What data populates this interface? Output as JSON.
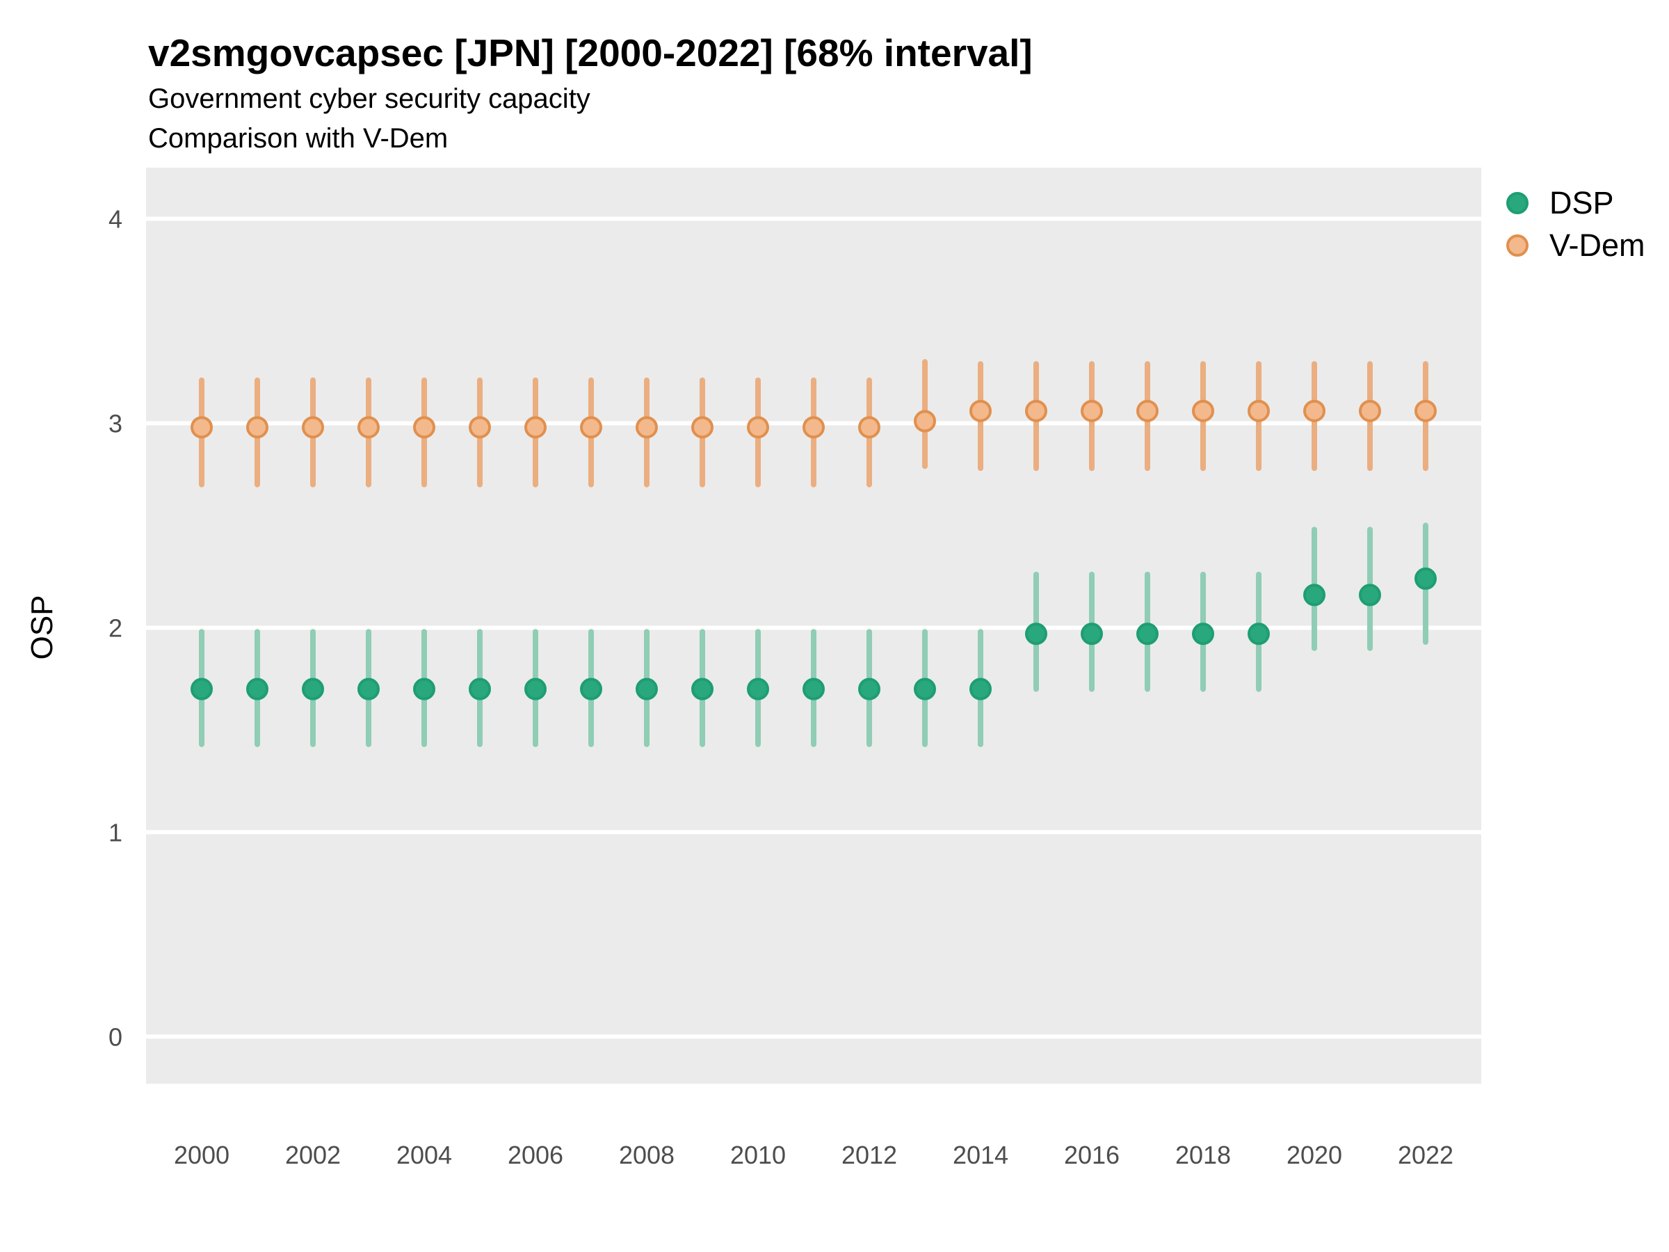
{
  "header": {
    "title": "v2smgovcapsec [JPN] [2000-2022] [68% interval]",
    "subtitle1": "Government cyber security capacity",
    "subtitle2": "Comparison with V-Dem"
  },
  "axes": {
    "y_label": "OSP"
  },
  "panel": {
    "background_color": "#EBEBEB",
    "gridline_color": "#FFFFFF"
  },
  "chart_data": {
    "type": "scatter",
    "title": "v2smgovcapsec [JPN] [2000-2022] [68% interval]",
    "subtitle": [
      "Government cyber security capacity",
      "Comparison with V-Dem"
    ],
    "interval": "68%",
    "xlabel": "",
    "ylabel": "OSP",
    "grid": "major-horizontal",
    "legend_position": "right-top",
    "xlim": [
      1999,
      2023
    ],
    "ylim": [
      -0.23,
      4.25
    ],
    "x_ticks": [
      2000,
      2002,
      2004,
      2006,
      2008,
      2010,
      2012,
      2014,
      2016,
      2018,
      2020,
      2022
    ],
    "y_ticks": [
      0,
      1,
      2,
      3,
      4
    ],
    "x": [
      2000,
      2001,
      2002,
      2003,
      2004,
      2005,
      2006,
      2007,
      2008,
      2009,
      2010,
      2011,
      2012,
      2013,
      2014,
      2015,
      2016,
      2017,
      2018,
      2019,
      2020,
      2021,
      2022
    ],
    "series": [
      {
        "name": "DSP",
        "marker_fill": "#2AA87D",
        "marker_stroke": "#1E9E72",
        "bar_color": "#8FCDB5",
        "values": [
          1.7,
          1.7,
          1.7,
          1.7,
          1.7,
          1.7,
          1.7,
          1.7,
          1.7,
          1.7,
          1.7,
          1.7,
          1.7,
          1.7,
          1.7,
          1.97,
          1.97,
          1.97,
          1.97,
          1.97,
          2.16,
          2.16,
          2.24
        ],
        "lower": [
          1.43,
          1.43,
          1.43,
          1.43,
          1.43,
          1.43,
          1.43,
          1.43,
          1.43,
          1.43,
          1.43,
          1.43,
          1.43,
          1.43,
          1.43,
          1.7,
          1.7,
          1.7,
          1.7,
          1.7,
          1.9,
          1.9,
          1.93
        ],
        "upper": [
          1.98,
          1.98,
          1.98,
          1.98,
          1.98,
          1.98,
          1.98,
          1.98,
          1.98,
          1.98,
          1.98,
          1.98,
          1.98,
          1.98,
          1.98,
          2.26,
          2.26,
          2.26,
          2.26,
          2.26,
          2.48,
          2.48,
          2.5
        ]
      },
      {
        "name": "V-Dem",
        "marker_fill": "#F3B98C",
        "marker_stroke": "#E0904F",
        "bar_color": "#EBAE80",
        "values": [
          2.98,
          2.98,
          2.98,
          2.98,
          2.98,
          2.98,
          2.98,
          2.98,
          2.98,
          2.98,
          2.98,
          2.98,
          2.98,
          3.01,
          3.06,
          3.06,
          3.06,
          3.06,
          3.06,
          3.06,
          3.06,
          3.06,
          3.06
        ],
        "lower": [
          2.7,
          2.7,
          2.7,
          2.7,
          2.7,
          2.7,
          2.7,
          2.7,
          2.7,
          2.7,
          2.7,
          2.7,
          2.7,
          2.79,
          2.78,
          2.78,
          2.78,
          2.78,
          2.78,
          2.78,
          2.78,
          2.78,
          2.78
        ],
        "upper": [
          3.21,
          3.21,
          3.21,
          3.21,
          3.21,
          3.21,
          3.21,
          3.21,
          3.21,
          3.21,
          3.21,
          3.21,
          3.21,
          3.3,
          3.29,
          3.29,
          3.29,
          3.29,
          3.29,
          3.29,
          3.29,
          3.29,
          3.29
        ]
      }
    ]
  }
}
